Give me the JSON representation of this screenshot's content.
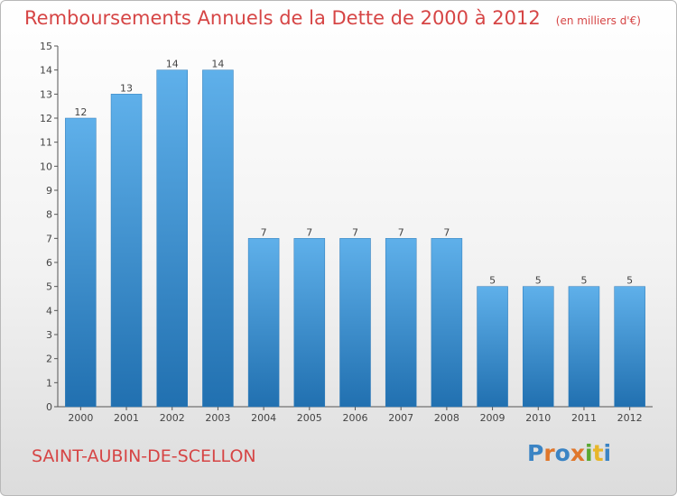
{
  "header": {
    "title": "Remboursements Annuels de la Dette de 2000 à 2012",
    "unit": "(en milliers d'€)"
  },
  "footer": {
    "commune": "SAINT-AUBIN-DE-SCELLON",
    "logo": [
      "P",
      "r",
      "o",
      "x",
      "i",
      "t",
      "i"
    ]
  },
  "colors": {
    "title": "#d64545",
    "bar_top": "#5fb0ea",
    "bar_bottom": "#2170b0",
    "axis": "#555555"
  },
  "chart_data": {
    "type": "bar",
    "title": "Remboursements Annuels de la Dette de 2000 à 2012",
    "categories": [
      "2000",
      "2001",
      "2002",
      "2003",
      "2004",
      "2005",
      "2006",
      "2007",
      "2008",
      "2009",
      "2010",
      "2011",
      "2012"
    ],
    "values": [
      12,
      13,
      14,
      14,
      7,
      7,
      7,
      7,
      7,
      5,
      5,
      5,
      5
    ],
    "ylim": [
      0,
      15
    ],
    "yticks": [
      "0",
      "1",
      "2",
      "3",
      "4",
      "5",
      "6",
      "7",
      "8",
      "9",
      "10",
      "11",
      "12",
      "13",
      "14",
      "15"
    ],
    "grid": false,
    "legend": "none"
  }
}
